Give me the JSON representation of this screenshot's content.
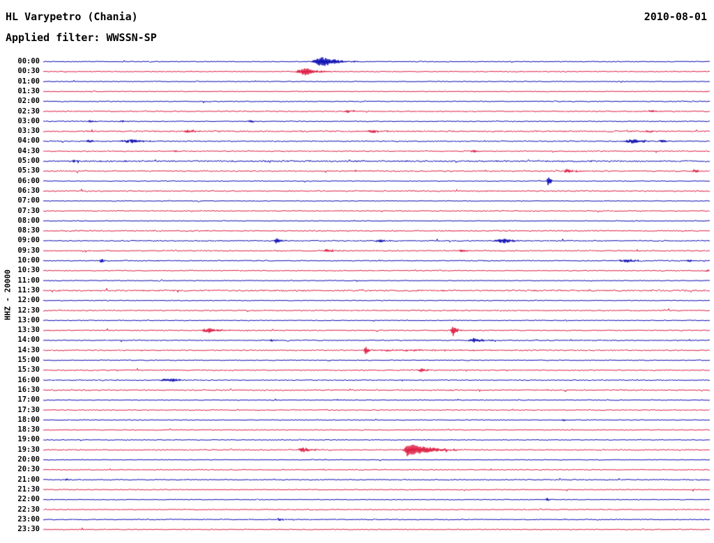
{
  "header": {
    "station": "HL Varypetro (Chania)",
    "date": "2010-08-01",
    "filter": "Applied filter: WWSSN-SP"
  },
  "axis": {
    "left_label": "HHZ - 20000"
  },
  "colors": {
    "background": "#ffffff",
    "text": "#000000",
    "trace_blue": "#0000b0",
    "trace_red": "#dc143c"
  },
  "chart_data": {
    "type": "line",
    "title": "HL Varypetro (Chania) helicorder record",
    "subtitle": "Applied filter: WWSSN-SP",
    "date": "2010-08-01",
    "ylabel": "HHZ - 20000",
    "xlabel": "",
    "row_duration_minutes": 30,
    "row_count": 48,
    "grid": false,
    "legend": "none",
    "rows": [
      {
        "label": "00:00",
        "color": "blue",
        "noise": 0.6,
        "events": [
          [
            0.421,
            7,
            14,
            18
          ]
        ]
      },
      {
        "label": "00:30",
        "color": "red",
        "noise": 0.6,
        "events": [
          [
            0.395,
            5,
            12,
            16
          ]
        ]
      },
      {
        "label": "01:00",
        "color": "blue",
        "noise": 0.5,
        "events": []
      },
      {
        "label": "01:30",
        "color": "red",
        "noise": 0.5,
        "events": []
      },
      {
        "label": "02:00",
        "color": "blue",
        "noise": 0.6,
        "events": []
      },
      {
        "label": "02:30",
        "color": "red",
        "noise": 0.6,
        "events": [
          [
            0.458,
            1.8,
            6,
            9
          ],
          [
            0.913,
            2.2,
            6,
            9
          ]
        ]
      },
      {
        "label": "03:00",
        "color": "blue",
        "noise": 0.6,
        "events": [
          [
            0.071,
            1.8,
            4,
            6
          ],
          [
            0.118,
            1.5,
            4,
            6
          ],
          [
            0.312,
            1.8,
            5,
            7
          ]
        ]
      },
      {
        "label": "03:30",
        "color": "red",
        "noise": 0.9,
        "events": [
          [
            0.218,
            2.2,
            6,
            9
          ],
          [
            0.495,
            2.6,
            6,
            10
          ],
          [
            0.91,
            1.5,
            5,
            8
          ]
        ]
      },
      {
        "label": "04:00",
        "color": "blue",
        "noise": 0.7,
        "events": [
          [
            0.069,
            2.2,
            5,
            8
          ],
          [
            0.13,
            2.8,
            10,
            22
          ],
          [
            0.885,
            3,
            12,
            18
          ],
          [
            0.929,
            2,
            6,
            10
          ]
        ]
      },
      {
        "label": "04:30",
        "color": "red",
        "noise": 0.7,
        "events": [
          [
            0.197,
            1.2,
            5,
            8
          ],
          [
            0.646,
            1.8,
            6,
            9
          ]
        ]
      },
      {
        "label": "05:00",
        "color": "blue",
        "noise": 1.0,
        "events": [
          [
            0.045,
            1.5,
            5,
            8
          ]
        ]
      },
      {
        "label": "05:30",
        "color": "red",
        "noise": 0.8,
        "events": [
          [
            0.787,
            2.8,
            6,
            10
          ],
          [
            0.976,
            2.2,
            5,
            8
          ]
        ]
      },
      {
        "label": "06:00",
        "color": "blue",
        "noise": 0.5,
        "events": [
          [
            0.758,
            9,
            2,
            3
          ]
        ]
      },
      {
        "label": "06:30",
        "color": "red",
        "noise": 0.8,
        "events": []
      },
      {
        "label": "07:00",
        "color": "blue",
        "noise": 0.5,
        "events": []
      },
      {
        "label": "07:30",
        "color": "red",
        "noise": 0.6,
        "events": []
      },
      {
        "label": "08:00",
        "color": "blue",
        "noise": 0.5,
        "events": []
      },
      {
        "label": "08:30",
        "color": "red",
        "noise": 0.8,
        "events": []
      },
      {
        "label": "09:00",
        "color": "blue",
        "noise": 0.7,
        "events": [
          [
            0.35,
            4,
            3,
            6
          ],
          [
            0.505,
            2.5,
            5,
            8
          ],
          [
            0.691,
            3.2,
            12,
            16
          ]
        ]
      },
      {
        "label": "09:30",
        "color": "red",
        "noise": 0.7,
        "events": [
          [
            0.427,
            2.6,
            6,
            10
          ],
          [
            0.628,
            2,
            5,
            8
          ]
        ]
      },
      {
        "label": "10:00",
        "color": "blue",
        "noise": 0.7,
        "events": [
          [
            0.087,
            3,
            3,
            5
          ],
          [
            0.877,
            2.4,
            12,
            16
          ],
          [
            0.97,
            1.5,
            5,
            8
          ]
        ]
      },
      {
        "label": "10:30",
        "color": "red",
        "noise": 0.6,
        "events": [
          [
            0.997,
            2,
            4,
            4
          ]
        ]
      },
      {
        "label": "11:00",
        "color": "blue",
        "noise": 0.5,
        "events": []
      },
      {
        "label": "11:30",
        "color": "red",
        "noise": 1.0,
        "events": []
      },
      {
        "label": "12:00",
        "color": "blue",
        "noise": 0.5,
        "events": []
      },
      {
        "label": "12:30",
        "color": "red",
        "noise": 0.7,
        "events": []
      },
      {
        "label": "13:00",
        "color": "blue",
        "noise": 0.5,
        "events": []
      },
      {
        "label": "13:30",
        "color": "red",
        "noise": 0.7,
        "events": [
          [
            0.249,
            3.5,
            10,
            14
          ],
          [
            0.615,
            7.5,
            3,
            5
          ]
        ]
      },
      {
        "label": "14:00",
        "color": "blue",
        "noise": 0.6,
        "events": [
          [
            0.343,
            1.5,
            5,
            8
          ],
          [
            0.649,
            3,
            10,
            14
          ]
        ]
      },
      {
        "label": "14:30",
        "color": "red",
        "noise": 0.7,
        "events": [
          [
            0.484,
            6,
            2.5,
            4
          ],
          [
            0.52,
            1.2,
            20,
            120
          ]
        ]
      },
      {
        "label": "15:00",
        "color": "blue",
        "noise": 0.6,
        "events": []
      },
      {
        "label": "15:30",
        "color": "red",
        "noise": 0.7,
        "events": [
          [
            0.568,
            2.4,
            6,
            9
          ]
        ]
      },
      {
        "label": "16:00",
        "color": "blue",
        "noise": 0.6,
        "events": [
          [
            0.191,
            2.4,
            14,
            18
          ]
        ]
      },
      {
        "label": "16:30",
        "color": "red",
        "noise": 0.8,
        "events": []
      },
      {
        "label": "17:00",
        "color": "blue",
        "noise": 0.5,
        "events": []
      },
      {
        "label": "17:30",
        "color": "red",
        "noise": 0.6,
        "events": []
      },
      {
        "label": "18:00",
        "color": "blue",
        "noise": 0.5,
        "events": [
          [
            0.782,
            1.5,
            4,
            6
          ]
        ]
      },
      {
        "label": "18:30",
        "color": "red",
        "noise": 0.6,
        "events": []
      },
      {
        "label": "19:00",
        "color": "blue",
        "noise": 0.5,
        "events": []
      },
      {
        "label": "19:30",
        "color": "red",
        "noise": 0.7,
        "events": [
          [
            0.392,
            2.8,
            10,
            14
          ],
          [
            0.547,
            10,
            4,
            30
          ]
        ]
      },
      {
        "label": "20:00",
        "color": "blue",
        "noise": 0.5,
        "events": []
      },
      {
        "label": "20:30",
        "color": "red",
        "noise": 0.6,
        "events": []
      },
      {
        "label": "21:00",
        "color": "blue",
        "noise": 0.6,
        "events": [
          [
            0.035,
            1.6,
            4,
            6
          ]
        ]
      },
      {
        "label": "21:30",
        "color": "red",
        "noise": 0.6,
        "events": []
      },
      {
        "label": "22:00",
        "color": "blue",
        "noise": 0.5,
        "events": [
          [
            0.756,
            3.5,
            1.5,
            2.5
          ]
        ]
      },
      {
        "label": "22:30",
        "color": "red",
        "noise": 0.6,
        "events": []
      },
      {
        "label": "23:00",
        "color": "blue",
        "noise": 0.6,
        "events": [
          [
            0.354,
            1.8,
            5,
            8
          ]
        ]
      },
      {
        "label": "23:30",
        "color": "red",
        "noise": 0.6,
        "events": []
      }
    ]
  }
}
